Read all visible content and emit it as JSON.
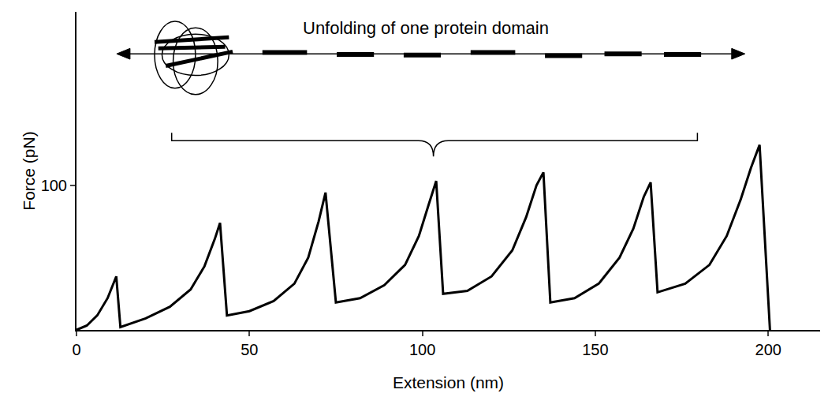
{
  "chart_data": {
    "type": "line",
    "xlabel": "Extension (nm)",
    "ylabel": "Force (pN)",
    "annotation": "Unfolding of one protein domain",
    "x": [
      0,
      3,
      6,
      9,
      11.5,
      12.7,
      20,
      27,
      33,
      37,
      40,
      41.5,
      43.5,
      50,
      57,
      63,
      67,
      70,
      72,
      75,
      82,
      89,
      95,
      99,
      102,
      104,
      106,
      113,
      120,
      126,
      130,
      133,
      135,
      137,
      144,
      151,
      157,
      161,
      164,
      166,
      168,
      176,
      183,
      188,
      192,
      195,
      197.5,
      200.5
    ],
    "values": [
      0,
      3,
      10,
      22,
      37,
      2,
      8,
      16,
      28,
      44,
      63,
      74,
      10,
      13,
      20,
      32,
      50,
      75,
      95,
      19,
      22,
      31,
      45,
      65,
      88,
      103,
      25,
      27,
      37,
      55,
      78,
      100,
      109,
      19,
      22,
      32,
      50,
      70,
      92,
      102,
      26,
      32,
      45,
      65,
      90,
      112,
      128,
      0
    ],
    "color": "#000000",
    "xlim": [
      0,
      215
    ],
    "ylim": [
      0,
      220
    ],
    "xticks": [
      0,
      50,
      100,
      150,
      200
    ],
    "yticks": [
      100
    ],
    "grid": false
  }
}
